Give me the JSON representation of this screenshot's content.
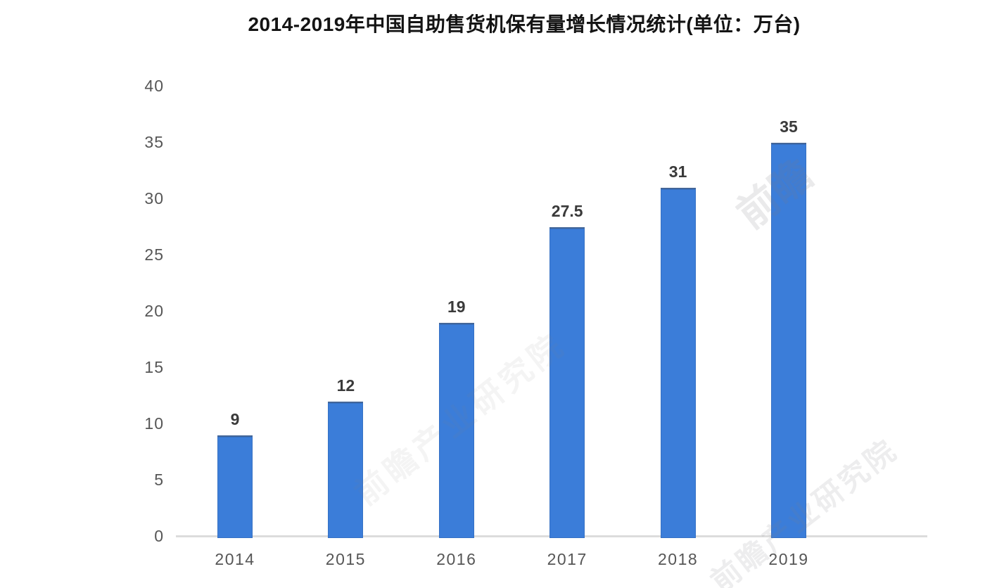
{
  "title": "2014-2019年中国自助售货机保有量增长情况统计(单位：万台)",
  "watermark": {
    "logo_text": "前瞻",
    "text": "前瞻产业研究院"
  },
  "chart_data": {
    "type": "bar",
    "title": "2014-2019年中国自助售货机保有量增长情况统计(单位：万台)",
    "unit": "万台",
    "categories": [
      "2014",
      "2015",
      "2016",
      "2017",
      "2018",
      "2019"
    ],
    "values": [
      9,
      12,
      19,
      27.5,
      31,
      35
    ],
    "value_labels": [
      "9",
      "12",
      "19",
      "27.5",
      "31",
      "35"
    ],
    "xlabel": "",
    "ylabel": "",
    "ylim": [
      0,
      40
    ],
    "yticks": [
      40,
      35,
      30,
      25,
      20,
      15,
      10,
      5,
      0
    ],
    "grid": false,
    "legend": false,
    "bar_color": "#3b7dd9",
    "axis_line_color": "#dcdcdc",
    "value_label_color": "#3a3a3a",
    "tick_label_color": "#565656"
  }
}
